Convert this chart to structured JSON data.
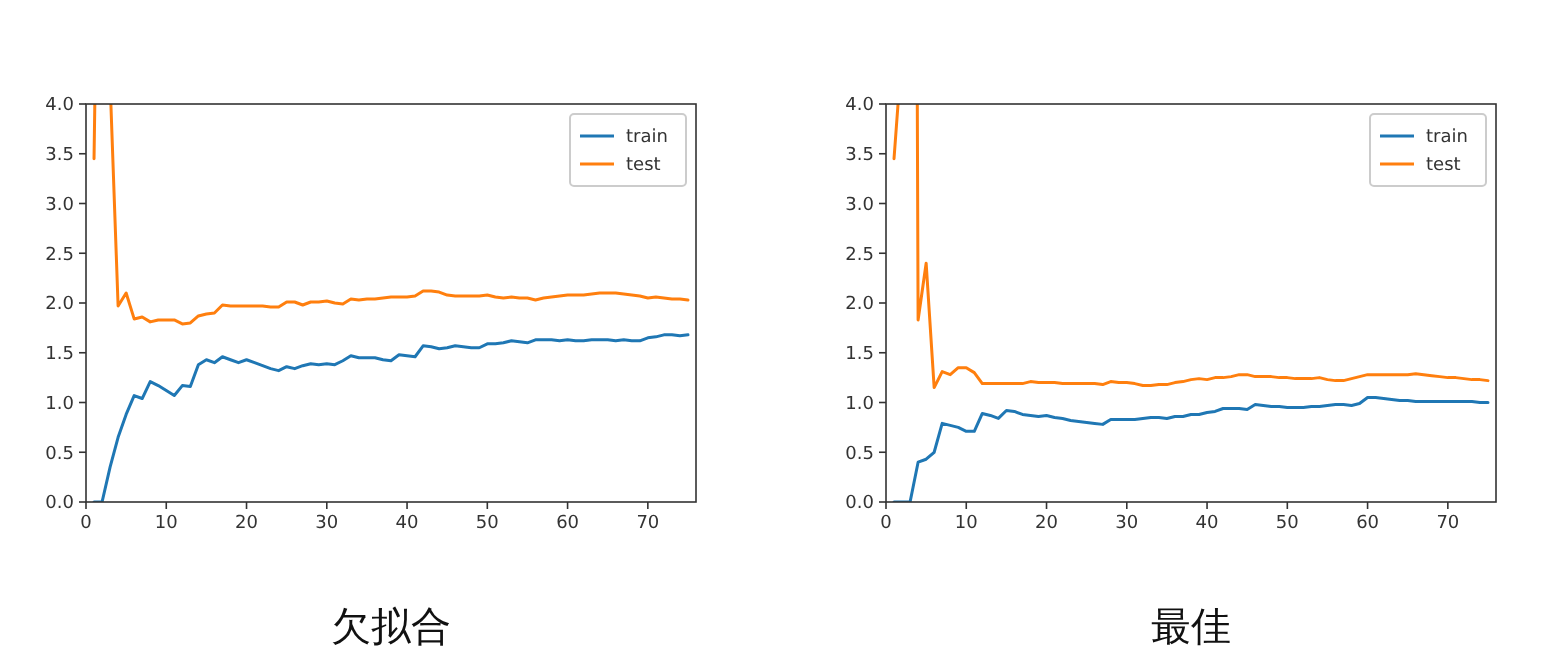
{
  "chart_data": [
    {
      "type": "line",
      "title": "欠拟合",
      "legend": "top right",
      "xlim": [
        0,
        76
      ],
      "ylim": [
        0,
        4
      ],
      "xticks": [
        0,
        10,
        20,
        30,
        40,
        50,
        60,
        70
      ],
      "yticks": [
        {
          "value": 0,
          "label": "0.0"
        },
        {
          "value": 0.5,
          "label": "0.5"
        },
        {
          "value": 1,
          "label": "1.0"
        },
        {
          "value": 1.5,
          "label": "1.5"
        },
        {
          "value": 2,
          "label": "2.0"
        },
        {
          "value": 2.5,
          "label": "2.5"
        },
        {
          "value": 3,
          "label": "3.0"
        },
        {
          "value": 3.5,
          "label": "3.5"
        },
        {
          "value": 4,
          "label": "4.0"
        }
      ],
      "x": [
        1,
        2,
        3,
        4,
        5,
        6,
        7,
        8,
        9,
        10,
        11,
        12,
        13,
        14,
        15,
        16,
        17,
        18,
        19,
        20,
        21,
        22,
        23,
        24,
        25,
        26,
        27,
        28,
        29,
        30,
        31,
        32,
        33,
        34,
        35,
        36,
        37,
        38,
        39,
        40,
        41,
        42,
        43,
        44,
        45,
        46,
        47,
        48,
        49,
        50,
        51,
        52,
        53,
        54,
        55,
        56,
        57,
        58,
        59,
        60,
        61,
        62,
        63,
        64,
        65,
        66,
        67,
        68,
        69,
        70,
        71,
        72,
        73,
        74,
        75
      ],
      "series": [
        {
          "name": "train",
          "color": "#1f77b4",
          "values": [
            0,
            0,
            0.35,
            0.65,
            0.88,
            1.07,
            1.04,
            1.21,
            1.17,
            1.12,
            1.07,
            1.17,
            1.16,
            1.38,
            1.43,
            1.4,
            1.46,
            1.43,
            1.4,
            1.43,
            1.4,
            1.37,
            1.34,
            1.32,
            1.36,
            1.34,
            1.37,
            1.39,
            1.38,
            1.39,
            1.38,
            1.42,
            1.47,
            1.45,
            1.45,
            1.45,
            1.43,
            1.42,
            1.48,
            1.47,
            1.46,
            1.57,
            1.56,
            1.54,
            1.55,
            1.57,
            1.56,
            1.55,
            1.55,
            1.59,
            1.59,
            1.6,
            1.62,
            1.61,
            1.6,
            1.63,
            1.63,
            1.63,
            1.62,
            1.63,
            1.62,
            1.62,
            1.63,
            1.63,
            1.63,
            1.62,
            1.63,
            1.62,
            1.62,
            1.65,
            1.66,
            1.68,
            1.68,
            1.67,
            1.68
          ]
        },
        {
          "name": "test",
          "color": "#ff7f0e",
          "x": [
            1,
            1.1,
            3.1,
            4,
            5,
            6,
            7,
            8,
            9,
            10,
            11,
            12,
            13,
            14,
            15,
            16,
            17,
            18,
            19,
            20,
            21,
            22,
            23,
            24,
            25,
            26,
            27,
            28,
            29,
            30,
            31,
            32,
            33,
            34,
            35,
            36,
            37,
            38,
            39,
            40,
            41,
            42,
            43,
            44,
            45,
            46,
            47,
            48,
            49,
            50,
            51,
            52,
            53,
            54,
            55,
            56,
            57,
            58,
            59,
            60,
            61,
            62,
            63,
            64,
            65,
            66,
            67,
            68,
            69,
            70,
            71,
            72,
            73,
            74,
            75
          ],
          "values": [
            3.45,
            4,
            4,
            1.97,
            2.1,
            1.84,
            1.86,
            1.81,
            1.83,
            1.83,
            1.83,
            1.79,
            1.8,
            1.87,
            1.89,
            1.9,
            1.98,
            1.97,
            1.97,
            1.97,
            1.97,
            1.97,
            1.96,
            1.96,
            2.01,
            2.01,
            1.98,
            2.01,
            2.01,
            2.02,
            2.0,
            1.99,
            2.04,
            2.03,
            2.04,
            2.04,
            2.05,
            2.06,
            2.06,
            2.06,
            2.07,
            2.12,
            2.12,
            2.11,
            2.08,
            2.07,
            2.07,
            2.07,
            2.07,
            2.08,
            2.06,
            2.05,
            2.06,
            2.05,
            2.05,
            2.03,
            2.05,
            2.06,
            2.07,
            2.08,
            2.08,
            2.08,
            2.09,
            2.1,
            2.1,
            2.1,
            2.09,
            2.08,
            2.07,
            2.05,
            2.06,
            2.05,
            2.04,
            2.04,
            2.03
          ]
        }
      ]
    },
    {
      "type": "line",
      "title": "最佳",
      "legend": "top right",
      "xlim": [
        0,
        76
      ],
      "ylim": [
        0,
        4
      ],
      "xticks": [
        0,
        10,
        20,
        30,
        40,
        50,
        60,
        70
      ],
      "yticks": [
        {
          "value": 0,
          "label": "0.0"
        },
        {
          "value": 0.5,
          "label": "0.5"
        },
        {
          "value": 1,
          "label": "1.0"
        },
        {
          "value": 1.5,
          "label": "1.5"
        },
        {
          "value": 2,
          "label": "2.0"
        },
        {
          "value": 2.5,
          "label": "2.5"
        },
        {
          "value": 3,
          "label": "3.0"
        },
        {
          "value": 3.5,
          "label": "3.5"
        },
        {
          "value": 4,
          "label": "4.0"
        }
      ],
      "x": [
        1,
        2,
        3,
        4,
        5,
        6,
        7,
        8,
        9,
        10,
        11,
        12,
        13,
        14,
        15,
        16,
        17,
        18,
        19,
        20,
        21,
        22,
        23,
        24,
        25,
        26,
        27,
        28,
        29,
        30,
        31,
        32,
        33,
        34,
        35,
        36,
        37,
        38,
        39,
        40,
        41,
        42,
        43,
        44,
        45,
        46,
        47,
        48,
        49,
        50,
        51,
        52,
        53,
        54,
        55,
        56,
        57,
        58,
        59,
        60,
        61,
        62,
        63,
        64,
        65,
        66,
        67,
        68,
        69,
        70,
        71,
        72,
        73,
        74,
        75
      ],
      "series": [
        {
          "name": "train",
          "color": "#1f77b4",
          "values": [
            0,
            0,
            0,
            0.4,
            0.43,
            0.5,
            0.79,
            0.77,
            0.75,
            0.71,
            0.71,
            0.89,
            0.87,
            0.84,
            0.92,
            0.91,
            0.88,
            0.87,
            0.86,
            0.87,
            0.85,
            0.84,
            0.82,
            0.81,
            0.8,
            0.79,
            0.78,
            0.83,
            0.83,
            0.83,
            0.83,
            0.84,
            0.85,
            0.85,
            0.84,
            0.86,
            0.86,
            0.88,
            0.88,
            0.9,
            0.91,
            0.94,
            0.94,
            0.94,
            0.93,
            0.98,
            0.97,
            0.96,
            0.96,
            0.95,
            0.95,
            0.95,
            0.96,
            0.96,
            0.97,
            0.98,
            0.98,
            0.97,
            0.99,
            1.05,
            1.05,
            1.04,
            1.03,
            1.02,
            1.02,
            1.01,
            1.01,
            1.01,
            1.01,
            1.01,
            1.01,
            1.01,
            1.01,
            1.0,
            1.0
          ]
        },
        {
          "name": "test",
          "color": "#ff7f0e",
          "x": [
            1,
            1.5,
            3.9,
            4,
            5,
            6,
            7,
            8,
            9,
            10,
            11,
            12,
            13,
            14,
            15,
            16,
            17,
            18,
            19,
            20,
            21,
            22,
            23,
            24,
            25,
            26,
            27,
            28,
            29,
            30,
            31,
            32,
            33,
            34,
            35,
            36,
            37,
            38,
            39,
            40,
            41,
            42,
            43,
            44,
            45,
            46,
            47,
            48,
            49,
            50,
            51,
            52,
            53,
            54,
            55,
            56,
            57,
            58,
            59,
            60,
            61,
            62,
            63,
            64,
            65,
            66,
            67,
            68,
            69,
            70,
            71,
            72,
            73,
            74,
            75
          ],
          "values": [
            3.45,
            4,
            4,
            1.83,
            2.4,
            1.15,
            1.31,
            1.28,
            1.35,
            1.35,
            1.3,
            1.19,
            1.19,
            1.19,
            1.19,
            1.19,
            1.19,
            1.21,
            1.2,
            1.2,
            1.2,
            1.19,
            1.19,
            1.19,
            1.19,
            1.19,
            1.18,
            1.21,
            1.2,
            1.2,
            1.19,
            1.17,
            1.17,
            1.18,
            1.18,
            1.2,
            1.21,
            1.23,
            1.24,
            1.23,
            1.25,
            1.25,
            1.26,
            1.28,
            1.28,
            1.26,
            1.26,
            1.26,
            1.25,
            1.25,
            1.24,
            1.24,
            1.24,
            1.25,
            1.23,
            1.22,
            1.22,
            1.24,
            1.26,
            1.28,
            1.28,
            1.28,
            1.28,
            1.28,
            1.28,
            1.29,
            1.28,
            1.27,
            1.26,
            1.25,
            1.25,
            1.24,
            1.23,
            1.23,
            1.22
          ]
        }
      ]
    }
  ]
}
